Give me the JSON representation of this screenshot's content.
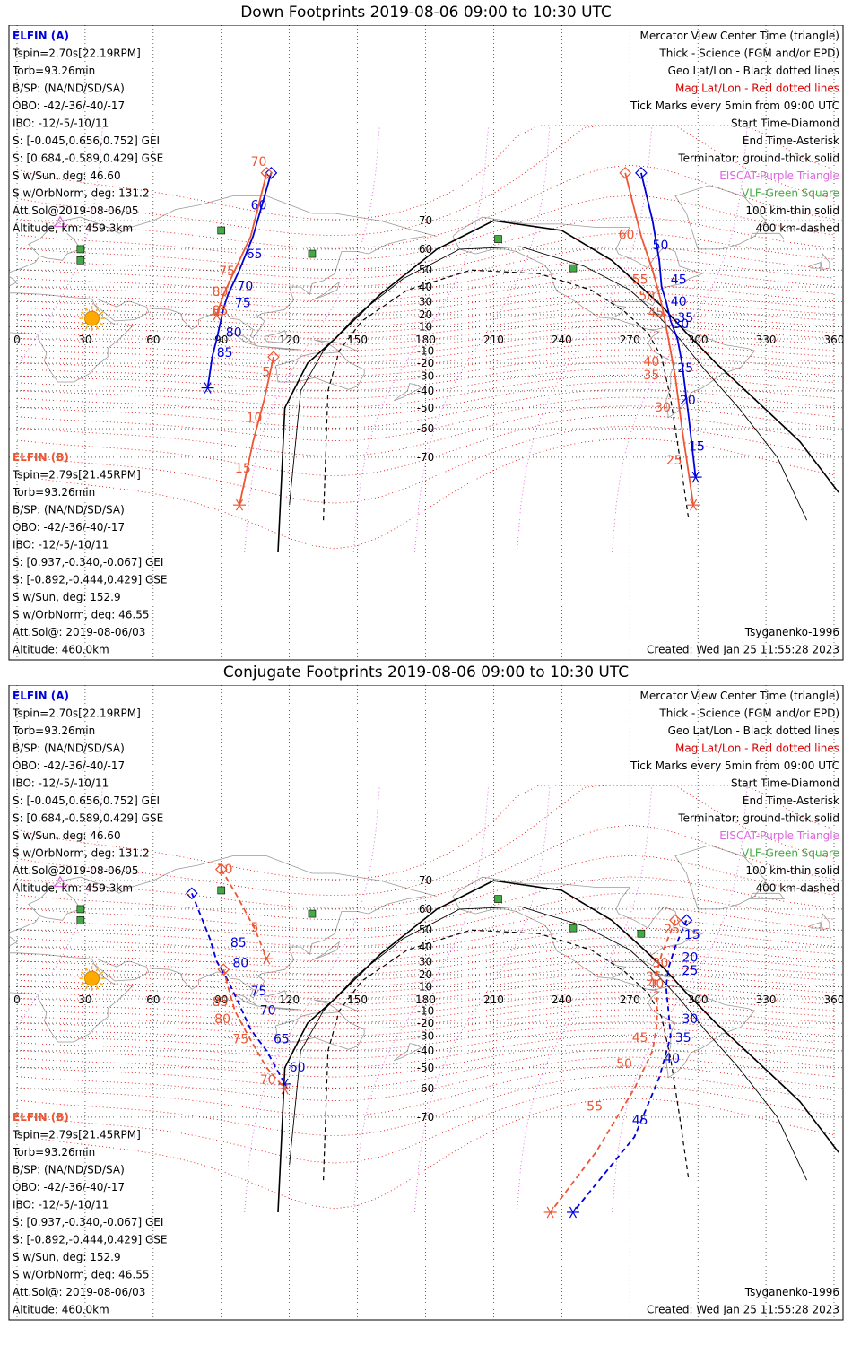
{
  "colors": {
    "elfin_a": "#0000dd",
    "elfin_b": "#ee5533",
    "mag_grid": "#dd0000",
    "vlf": "#44aa44",
    "eiscat": "#dd66dd",
    "terminator": "#000000",
    "sun": "#ffaa00",
    "coast": "#999999"
  },
  "panels": [
    {
      "id": "down",
      "title": "Down Footprints 2019-08-06 09:00 to 10:30 UTC",
      "left_a": [
        "ELFIN (A)",
        "Tspin=2.70s[22.19RPM]",
        "Torb=93.26min",
        "B/SP: (NA/ND/SD/SA)",
        "OBO: -42/-36/-40/-17",
        "IBO: -12/-5/-10/11",
        "S: [-0.045,0.656,0.752] GEI",
        "S: [0.684,-0.589,0.429] GSE",
        "S w/Sun, deg: 46.60",
        "S w/OrbNorm, deg: 131.2",
        "Att.Sol@2019-08-06/05",
        "Altitude, km: 459.3km"
      ],
      "left_b": [
        "ELFIN (B)",
        "Tspin=2.79s[21.45RPM]",
        "Torb=93.26min",
        "B/SP: (NA/ND/SD/SA)",
        "OBO: -42/-36/-40/-17",
        "IBO: -12/-5/-10/11",
        "S: [0.937,-0.340,-0.067] GEI",
        "S: [-0.892,-0.444,0.429] GSE",
        "S w/Sun, deg: 152.9",
        "S w/OrbNorm, deg: 46.55",
        "Att.Sol@: 2019-08-06/03",
        "Altitude: 460.0km"
      ],
      "legend": [
        "Mercator View Center Time (triangle)",
        "Thick - Science (FGM and/or EPD)",
        "Geo Lat/Lon - Black dotted lines",
        "Mag Lat/Lon - Red dotted lines",
        "Tick Marks every 5min from 09:00 UTC",
        "Start Time-Diamond",
        "End Time-Asterisk",
        "Terminator: ground-thick solid",
        "EISCAT-Purple Triangle",
        "VLF-Green Square",
        "100 km-thin solid",
        "400 km-dashed"
      ],
      "footer_right": [
        "Tsyganenko-1996",
        "Created: Wed Jan 25 11:55:28 2023"
      ]
    },
    {
      "id": "conj",
      "title": "Conjugate Footprints 2019-08-06 09:00 to 10:30 UTC",
      "left_a": [
        "ELFIN (A)",
        "Tspin=2.70s[22.19RPM]",
        "Torb=93.26min",
        "B/SP: (NA/ND/SD/SA)",
        "OBO: -42/-36/-40/-17",
        "IBO: -12/-5/-10/11",
        "S: [-0.045,0.656,0.752] GEI",
        "S: [0.684,-0.589,0.429] GSE",
        "S w/Sun, deg: 46.60",
        "S w/OrbNorm, deg: 131.2",
        "Att.Sol@2019-08-06/05",
        "Altitude, km: 459.3km"
      ],
      "left_b": [
        "ELFIN (B)",
        "Tspin=2.79s[21.45RPM]",
        "Torb=93.26min",
        "B/SP: (NA/ND/SD/SA)",
        "OBO: -42/-36/-40/-17",
        "IBO: -12/-5/-10/11",
        "S: [0.937,-0.340,-0.067] GEI",
        "S: [-0.892,-0.444,0.429] GSE",
        "S w/Sun, deg: 152.9",
        "S w/OrbNorm, deg: 46.55",
        "Att.Sol@: 2019-08-06/03",
        "Altitude: 460.0km"
      ],
      "legend": [
        "Mercator View Center Time (triangle)",
        "Thick - Science (FGM and/or EPD)",
        "Geo Lat/Lon - Black dotted lines",
        "Mag Lat/Lon - Red dotted lines",
        "Tick Marks every 5min from 09:00 UTC",
        "Start Time-Diamond",
        "End Time-Asterisk",
        "Terminator: ground-thick solid",
        "EISCAT-Purple Triangle",
        "VLF-Green Square",
        "100 km-thin solid",
        "400 km-dashed"
      ],
      "footer_right": [
        "Tsyganenko-1996",
        "Created: Wed Jan 25 11:55:28 2023"
      ]
    }
  ],
  "chart_data": [
    {
      "type": "map",
      "projection": "mercator",
      "panel": "down",
      "xlim": [
        0,
        360
      ],
      "lon_ticks": [
        0,
        30,
        60,
        90,
        120,
        150,
        180,
        210,
        240,
        270,
        300,
        330,
        360
      ],
      "lat_ticks": [
        70,
        60,
        50,
        40,
        30,
        20,
        10,
        -10,
        -20,
        -30,
        -40,
        -50,
        -60,
        -70
      ],
      "vlf_sites": [
        [
          90,
          67
        ],
        [
          28,
          60
        ],
        [
          28,
          55
        ],
        [
          130,
          58
        ],
        [
          212,
          64
        ],
        [
          245,
          51
        ]
      ],
      "eiscat_sites": [
        [
          19,
          69.6
        ]
      ],
      "sun_position": [
        33,
        17
      ],
      "terminator_ground": [
        [
          115,
          -90
        ],
        [
          118,
          -50
        ],
        [
          128,
          -20
        ],
        [
          140,
          0
        ],
        [
          160,
          35
        ],
        [
          185,
          60
        ],
        [
          210,
          70
        ],
        [
          240,
          67
        ],
        [
          262,
          55
        ],
        [
          275,
          40
        ],
        [
          285,
          25
        ],
        [
          295,
          5
        ],
        [
          308,
          -20
        ],
        [
          325,
          -45
        ],
        [
          345,
          -65
        ],
        [
          362,
          -78
        ]
      ],
      "terminator_100km": [
        [
          120,
          -80
        ],
        [
          125,
          -40
        ],
        [
          135,
          -10
        ],
        [
          150,
          20
        ],
        [
          170,
          45
        ],
        [
          195,
          60
        ],
        [
          222,
          61
        ],
        [
          250,
          52
        ],
        [
          270,
          38
        ],
        [
          282,
          20
        ],
        [
          292,
          0
        ],
        [
          303,
          -25
        ],
        [
          318,
          -50
        ],
        [
          335,
          -70
        ],
        [
          348,
          -82
        ]
      ],
      "terminator_400km": [
        [
          135,
          -82
        ],
        [
          137,
          -40
        ],
        [
          142,
          -10
        ],
        [
          152,
          15
        ],
        [
          172,
          38
        ],
        [
          200,
          50
        ],
        [
          230,
          48
        ],
        [
          253,
          38
        ],
        [
          268,
          22
        ],
        [
          278,
          5
        ],
        [
          284,
          -15
        ],
        [
          288,
          -45
        ],
        [
          292,
          -70
        ],
        [
          296,
          -82
        ]
      ],
      "series": [
        {
          "name": "ELFIN (A)",
          "color": "#0000dd",
          "path": [
            [
              112,
              80
            ],
            [
              104,
              65
            ],
            [
              98,
              50
            ],
            [
              93,
              35
            ],
            [
              91,
              25
            ],
            [
              88,
              0
            ],
            [
              86,
              -15
            ],
            [
              84,
              -38
            ]
          ],
          "labels": [
            [
              "60",
              103,
              73
            ],
            [
              "65",
              101,
              56
            ],
            [
              "70",
              97,
              38
            ],
            [
              "75",
              96,
              26
            ],
            [
              "80",
              92,
              2
            ],
            [
              "85",
              88,
              -15
            ]
          ]
        },
        {
          "name": "ELFIN (A)",
          "color": "#0000dd",
          "path": [
            [
              275,
              80
            ],
            [
              280,
              70
            ],
            [
              283,
              55
            ],
            [
              284,
              40
            ],
            [
              286,
              30
            ],
            [
              288,
              15
            ],
            [
              291,
              0
            ],
            [
              293,
              -20
            ],
            [
              296,
              -55
            ],
            [
              299,
              -75
            ]
          ],
          "labels": [
            [
              "50",
              280,
              60
            ],
            [
              "45",
              288,
              42
            ],
            [
              "40",
              288,
              27
            ],
            [
              "35",
              291,
              14
            ],
            [
              "30",
              289,
              9
            ],
            [
              "25",
              291,
              -27
            ],
            [
              "20",
              292,
              -48
            ],
            [
              "15",
              296,
              -68
            ]
          ]
        },
        {
          "name": "ELFIN (B)",
          "color": "#ee5533",
          "path": [
            [
              110,
              80
            ],
            [
              103,
              65
            ],
            [
              96,
              50
            ],
            [
              91,
              35
            ],
            [
              89,
              25
            ],
            [
              88,
              20
            ]
          ],
          "labels": [
            [
              "70",
              103,
              81
            ],
            [
              "75",
              89,
              47
            ],
            [
              "80",
              86,
              34
            ],
            [
              "85",
              86,
              20
            ]
          ]
        },
        {
          "name": "ELFIN (B)",
          "color": "#ee5533",
          "path": [
            [
              113,
              -15
            ],
            [
              109,
              -45
            ],
            [
              104,
              -65
            ],
            [
              98,
              -80
            ]
          ],
          "labels": [
            [
              "5",
              108,
              -30
            ],
            [
              "10",
              101,
              -57
            ],
            [
              "15",
              96,
              -74
            ]
          ]
        },
        {
          "name": "ELFIN (B)",
          "color": "#ee5533",
          "path": [
            [
              268,
              80
            ],
            [
              275,
              65
            ],
            [
              280,
              50
            ],
            [
              283,
              35
            ],
            [
              285,
              20
            ],
            [
              287,
              0
            ],
            [
              290,
              -30
            ],
            [
              293,
              -60
            ],
            [
              298,
              -80
            ]
          ],
          "labels": [
            [
              "60",
              265,
              64
            ],
            [
              "55",
              271,
              42
            ],
            [
              "50",
              274,
              31
            ],
            [
              "45",
              278,
              18
            ],
            [
              "40",
              276,
              -22
            ],
            [
              "35",
              276,
              -32
            ],
            [
              "30",
              281,
              -52
            ],
            [
              "25",
              286,
              -72
            ]
          ]
        }
      ]
    },
    {
      "type": "map",
      "projection": "mercator",
      "panel": "conj",
      "xlim": [
        0,
        360
      ],
      "lon_ticks": [
        0,
        30,
        60,
        90,
        120,
        150,
        180,
        210,
        240,
        270,
        300,
        330,
        360
      ],
      "lat_ticks": [
        70,
        60,
        50,
        40,
        30,
        20,
        10,
        -10,
        -20,
        -30,
        -40,
        -50,
        -60,
        -70
      ],
      "vlf_sites": [
        [
          90,
          67
        ],
        [
          28,
          60
        ],
        [
          28,
          55
        ],
        [
          130,
          58
        ],
        [
          212,
          64
        ],
        [
          245,
          51
        ],
        [
          275,
          48
        ]
      ],
      "eiscat_sites": [
        [
          19,
          69.6
        ]
      ],
      "sun_position": [
        33,
        17
      ],
      "series": [
        {
          "name": "ELFIN (A)",
          "color": "#0000dd",
          "path": [
            [
              77,
              66
            ],
            [
              85,
              45
            ],
            [
              88,
              30
            ],
            [
              93,
              15
            ],
            [
              98,
              -5
            ],
            [
              103,
              -25
            ],
            [
              110,
              -40
            ],
            [
              118,
              -58
            ]
          ],
          "labels": [
            [
              "85",
              94,
              40
            ],
            [
              "80",
              95,
              26
            ],
            [
              "75",
              103,
              3
            ],
            [
              "70",
              107,
              -13
            ],
            [
              "65",
              113,
              -35
            ],
            [
              "60",
              120,
              -52
            ]
          ]
        },
        {
          "name": "ELFIN (A)",
          "color": "#0000dd",
          "path": [
            [
              295,
              55
            ],
            [
              290,
              40
            ],
            [
              287,
              25
            ],
            [
              286,
              10
            ],
            [
              287,
              -10
            ],
            [
              288,
              -30
            ],
            [
              283,
              -55
            ],
            [
              272,
              -75
            ],
            [
              245,
              -90
            ]
          ],
          "labels": [
            [
              "15",
              294,
              45
            ],
            [
              "20",
              293,
              30
            ],
            [
              "25",
              293,
              20
            ],
            [
              "30",
              293,
              -20
            ],
            [
              "35",
              290,
              -34
            ],
            [
              "40",
              285,
              -47
            ],
            [
              "45",
              271,
              -72
            ]
          ]
        },
        {
          "name": "ELFIN (B)",
          "color": "#ee5533",
          "path": [
            [
              90,
              73
            ],
            [
              97,
              65
            ],
            [
              105,
              50
            ],
            [
              110,
              32
            ]
          ],
          "labels": [
            [
              "10",
              88,
              72
            ],
            [
              "5",
              103,
              49
            ]
          ]
        },
        {
          "name": "ELFIN (B)",
          "color": "#ee5533",
          "path": [
            [
              91,
              24
            ],
            [
              93,
              10
            ],
            [
              96,
              -10
            ],
            [
              102,
              -30
            ],
            [
              110,
              -50
            ],
            [
              118,
              -60
            ]
          ],
          "labels": [
            [
              "85",
              86,
              -6
            ],
            [
              "80",
              87,
              -20
            ],
            [
              "75",
              95,
              -35
            ],
            [
              "70",
              107,
              -58
            ]
          ]
        },
        {
          "name": "ELFIN (B)",
          "color": "#ee5533",
          "path": [
            [
              290,
              55
            ],
            [
              284,
              35
            ],
            [
              281,
              15
            ],
            [
              282,
              0
            ],
            [
              282,
              -20
            ],
            [
              280,
              -40
            ],
            [
              272,
              -60
            ],
            [
              255,
              -78
            ],
            [
              235,
              -85
            ]
          ],
          "labels": [
            [
              "25",
              285,
              48
            ],
            [
              "30",
              280,
              26
            ],
            [
              "35",
              277,
              15
            ],
            [
              "40",
              278,
              9
            ],
            [
              "45",
              271,
              -34
            ],
            [
              "50",
              264,
              -50
            ],
            [
              "55",
              251,
              -68
            ]
          ]
        }
      ]
    }
  ]
}
